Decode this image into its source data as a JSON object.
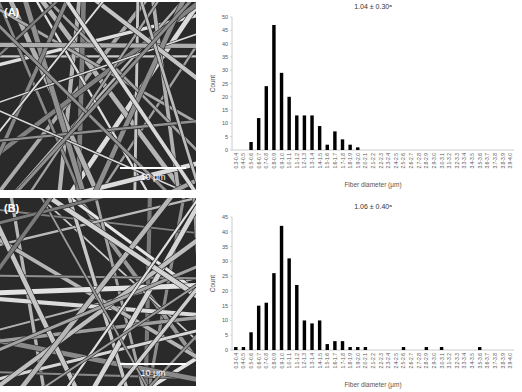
{
  "panels": [
    {
      "label": "(A)",
      "scale_bar": "10 μm"
    },
    {
      "label": "(B)",
      "scale_bar": "10 μm"
    }
  ],
  "chart_data": [
    {
      "type": "bar",
      "title": "1.04 ± 0.30ᵃ",
      "x_label": "Fiber diameter (μm)",
      "y_label": "Count",
      "categories": [
        "0.3-0.4",
        "0.4-0.5",
        "0.5-0.6",
        "0.6-0.7",
        "0.7-0.8",
        "0.8-0.9",
        "0.9-1.0",
        "1.0-1.1",
        "1.1-1.2",
        "1.2-1.3",
        "1.3-1.4",
        "1.4-1.5",
        "1.5-1.6",
        "1.6-1.7",
        "1.7-1.8",
        "1.8-1.9",
        "1.9-2.0",
        "2.0-2.1",
        "2.1-2.2",
        "2.2-2.3",
        "2.3-2.4",
        "2.4-2.5",
        "2.5-2.6",
        "2.6-2.7",
        "2.7-2.8",
        "2.8-2.9",
        "2.9-3.0",
        "3.0-3.1",
        "3.1-3.2",
        "3.2-3.3",
        "3.3-3.4",
        "3.4-3.5",
        "3.5-3.6",
        "3.6-3.7",
        "3.7-3.8",
        "3.8-3.9",
        "3.9-4.0"
      ],
      "values": [
        0,
        0,
        3,
        12,
        24,
        47,
        29,
        20,
        13,
        13,
        13,
        9,
        2,
        7,
        4,
        2,
        1,
        0,
        0,
        0,
        0,
        0,
        0,
        0,
        0,
        0,
        0,
        0,
        0,
        0,
        0,
        0,
        0,
        0,
        0,
        0,
        0
      ],
      "color": "#000000",
      "ylim": [
        0,
        50
      ],
      "yticks": [
        0,
        5,
        10,
        15,
        20,
        25,
        30,
        35,
        40,
        45,
        50
      ],
      "grid": false
    },
    {
      "type": "bar",
      "title": "1.06 ± 0.40ᵃ",
      "x_label": "Fiber diameter (μm)",
      "y_label": "Count",
      "categories": [
        "0.3-0.4",
        "0.4-0.5",
        "0.5-0.6",
        "0.6-0.7",
        "0.7-0.8",
        "0.8-0.9",
        "0.9-1.0",
        "1.0-1.1",
        "1.1-1.2",
        "1.2-1.3",
        "1.3-1.4",
        "1.4-1.5",
        "1.5-1.6",
        "1.6-1.7",
        "1.7-1.8",
        "1.8-1.9",
        "1.9-2.0",
        "2.0-2.1",
        "2.1-2.2",
        "2.2-2.3",
        "2.3-2.4",
        "2.4-2.5",
        "2.5-2.6",
        "2.6-2.7",
        "2.7-2.8",
        "2.8-2.9",
        "2.9-3.0",
        "3.0-3.1",
        "3.1-3.2",
        "3.2-3.3",
        "3.3-3.4",
        "3.4-3.5",
        "3.5-3.6",
        "3.6-3.7",
        "3.7-3.8",
        "3.8-3.9",
        "3.9-4.0"
      ],
      "values": [
        1,
        1,
        6,
        15,
        16,
        26,
        42,
        31,
        22,
        10,
        9,
        10,
        2,
        3,
        3,
        1,
        1,
        1,
        0,
        0,
        0,
        0,
        1,
        0,
        0,
        1,
        0,
        1,
        0,
        0,
        0,
        0,
        1,
        0,
        0,
        0,
        0
      ],
      "color": "#000000",
      "ylim": [
        0,
        45
      ],
      "yticks": [
        0,
        5,
        10,
        15,
        20,
        25,
        30,
        35,
        40,
        45
      ],
      "grid": false
    }
  ]
}
